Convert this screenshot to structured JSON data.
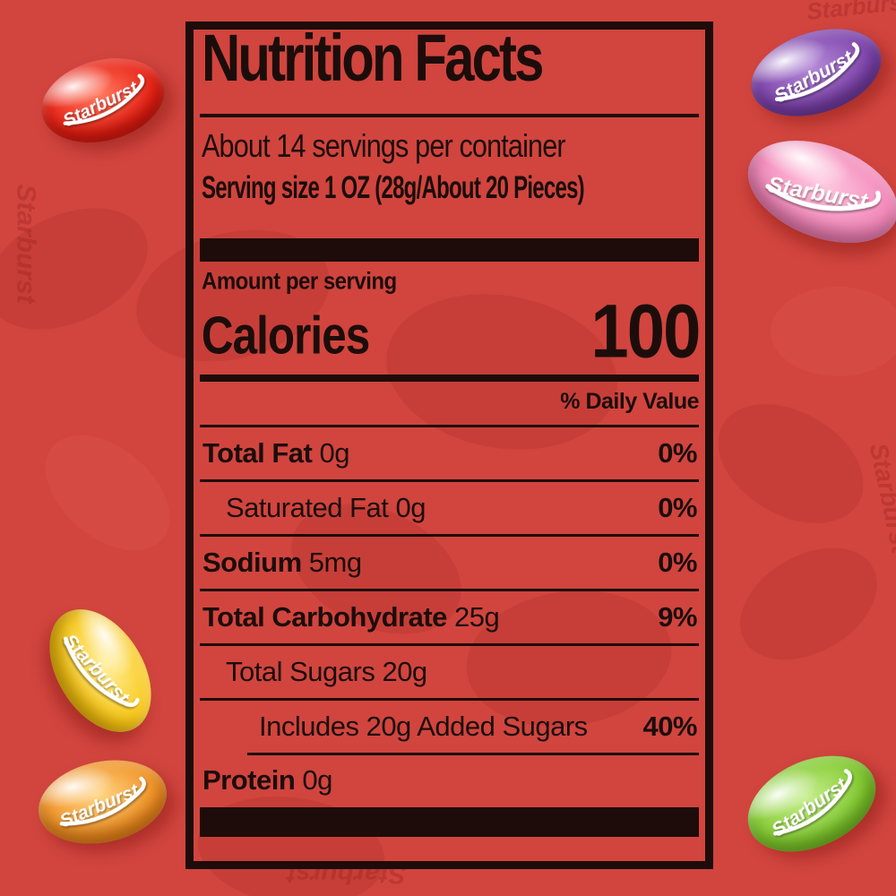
{
  "background": {
    "color": "#d1453e",
    "watermark_text": "Starburst"
  },
  "label": {
    "title": "Nutrition Facts",
    "servings_per_container": "About 14 servings per container",
    "serving_size": "Serving size 1 OZ (28g/About 20 Pieces)",
    "amount_per_serving": "Amount per serving",
    "calories_label": "Calories",
    "calories_value": "100",
    "daily_value_header": "% Daily Value",
    "rows": [
      {
        "name": "Total Fat",
        "amount": "0g",
        "dv": "0%",
        "name_bold": true,
        "indent": 0
      },
      {
        "name": "Saturated Fat",
        "amount": "0g",
        "dv": "0%",
        "name_bold": false,
        "indent": 1
      },
      {
        "name": "Sodium",
        "amount": "5mg",
        "dv": "0%",
        "name_bold": true,
        "indent": 0
      },
      {
        "name": "Total Carbohydrate",
        "amount": "25g",
        "dv": "9%",
        "name_bold": true,
        "indent": 0
      },
      {
        "name": "Total Sugars",
        "amount": "20g",
        "dv": "",
        "name_bold": false,
        "indent": 1
      },
      {
        "name": "Includes 20g Added Sugars",
        "amount": "",
        "dv": "40%",
        "name_bold": false,
        "indent": 2
      },
      {
        "name": "Protein",
        "amount": "0g",
        "dv": "",
        "name_bold": true,
        "indent": 0,
        "rule_above_indented": true
      }
    ],
    "ink_color": "#1d0c0a"
  },
  "beans": [
    {
      "id": "red",
      "label": "Starburst",
      "color_main": "#e71c10",
      "color_dark": "#9e0c06",
      "color_light": "#ff7a60"
    },
    {
      "id": "purple",
      "label": "Starburst",
      "color_main": "#7a3fa8",
      "color_dark": "#461e6e",
      "color_light": "#b48ad8"
    },
    {
      "id": "pink",
      "label": "Starburst",
      "color_main": "#f285b8",
      "color_dark": "#d4488e",
      "color_light": "#ffc9e0"
    },
    {
      "id": "yellow",
      "label": "Starburst",
      "color_main": "#f9c511",
      "color_dark": "#dd9400",
      "color_light": "#fff0a0"
    },
    {
      "id": "orange",
      "label": "Starburst",
      "color_main": "#f08c1e",
      "color_dark": "#d25708",
      "color_light": "#ffd684"
    },
    {
      "id": "green",
      "label": "Starburst",
      "color_main": "#7ec82a",
      "color_dark": "#4d9a10",
      "color_light": "#c6ee8e"
    }
  ]
}
